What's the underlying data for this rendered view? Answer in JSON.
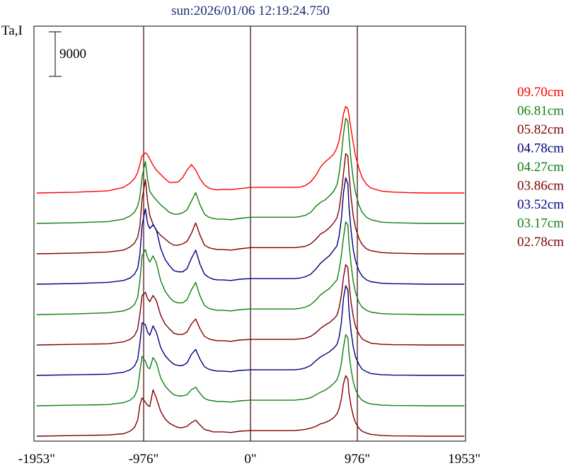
{
  "chart_data": {
    "type": "line",
    "title": "sun:2026/01/06 12:19:24.750",
    "ylabel": "Ta,I",
    "scale_bar_label": "9000",
    "x_ticks": [
      {
        "value": -1953,
        "label": "-1953\""
      },
      {
        "value": -976,
        "label": "-976\""
      },
      {
        "value": 0,
        "label": "0\""
      },
      {
        "value": 976,
        "label": "976\""
      },
      {
        "value": 1953,
        "label": "1953\""
      }
    ],
    "xlim": [
      -1953,
      1953
    ],
    "vertical_lines": [
      -976,
      0,
      976
    ],
    "grid": false,
    "legend_position": "right",
    "profile_x": [
      -1953,
      -1600,
      -1300,
      -1160,
      -1100,
      -1060,
      -1030,
      -1010,
      -990,
      -960,
      -940,
      -920,
      -890,
      -860,
      -820,
      -780,
      -740,
      -700,
      -660,
      -620,
      -580,
      -540,
      -500,
      -460,
      -420,
      -380,
      -340,
      -300,
      -250,
      -180,
      -100,
      0,
      100,
      200,
      300,
      400,
      450,
      500,
      550,
      600,
      640,
      680,
      720,
      760,
      790,
      810,
      830,
      850,
      870,
      890,
      900,
      920,
      940,
      960,
      990,
      1020,
      1060,
      1100,
      1200,
      1300,
      1450,
      1600,
      1953
    ],
    "series": [
      {
        "name": "09.70cm",
        "color": "#ff0000",
        "scale_bar_units": 0.72,
        "values": [
          0,
          0.012,
          0.035,
          0.09,
          0.16,
          0.23,
          0.33,
          0.47,
          0.6,
          0.65,
          0.62,
          0.55,
          0.45,
          0.37,
          0.3,
          0.23,
          0.17,
          0.17,
          0.18,
          0.25,
          0.37,
          0.46,
          0.37,
          0.23,
          0.13,
          0.08,
          0.06,
          0.05,
          0.06,
          0.055,
          0.07,
          0.09,
          0.09,
          0.09,
          0.09,
          0.09,
          0.095,
          0.12,
          0.18,
          0.29,
          0.42,
          0.5,
          0.56,
          0.63,
          0.73,
          0.85,
          1.05,
          1.28,
          1.4,
          1.36,
          1.26,
          1.02,
          0.8,
          0.6,
          0.4,
          0.25,
          0.14,
          0.08,
          0.03,
          0.015,
          0.005,
          0,
          0
        ]
      },
      {
        "name": "06.81cm",
        "color": "#108010",
        "scale_bar_units": 0.72,
        "values": [
          0,
          0.01,
          0.03,
          0.07,
          0.12,
          0.18,
          0.28,
          0.43,
          0.75,
          1.0,
          0.72,
          0.52,
          0.44,
          0.38,
          0.3,
          0.24,
          0.18,
          0.15,
          0.15,
          0.17,
          0.22,
          0.36,
          0.5,
          0.3,
          0.15,
          0.1,
          0.08,
          0.07,
          0.07,
          0.06,
          0.08,
          0.1,
          0.1,
          0.1,
          0.1,
          0.1,
          0.11,
          0.13,
          0.18,
          0.28,
          0.34,
          0.38,
          0.44,
          0.52,
          0.62,
          0.8,
          1.1,
          1.45,
          1.7,
          1.65,
          1.4,
          1.0,
          0.7,
          0.5,
          0.3,
          0.18,
          0.1,
          0.06,
          0.02,
          0.01,
          0.005,
          0,
          0
        ]
      },
      {
        "name": "05.82cm",
        "color": "#800000",
        "scale_bar_units": 0.72,
        "values": [
          0,
          0.01,
          0.03,
          0.06,
          0.11,
          0.17,
          0.27,
          0.45,
          0.88,
          1.2,
          0.85,
          0.62,
          0.48,
          0.38,
          0.3,
          0.24,
          0.18,
          0.14,
          0.14,
          0.16,
          0.2,
          0.33,
          0.5,
          0.3,
          0.14,
          0.1,
          0.08,
          0.07,
          0.07,
          0.06,
          0.08,
          0.1,
          0.1,
          0.1,
          0.1,
          0.1,
          0.11,
          0.12,
          0.16,
          0.24,
          0.32,
          0.36,
          0.42,
          0.5,
          0.58,
          0.72,
          0.98,
          1.3,
          1.62,
          1.58,
          1.3,
          0.9,
          0.6,
          0.42,
          0.25,
          0.15,
          0.08,
          0.05,
          0.02,
          0.01,
          0.005,
          0,
          0
        ]
      },
      {
        "name": "04.78cm",
        "color": "#000080",
        "scale_bar_units": 0.72,
        "values": [
          0,
          0.01,
          0.03,
          0.06,
          0.1,
          0.16,
          0.26,
          0.48,
          0.95,
          1.22,
          0.98,
          0.9,
          0.96,
          0.88,
          0.58,
          0.4,
          0.3,
          0.22,
          0.2,
          0.2,
          0.25,
          0.42,
          0.55,
          0.32,
          0.16,
          0.11,
          0.08,
          0.07,
          0.07,
          0.06,
          0.08,
          0.09,
          0.09,
          0.09,
          0.09,
          0.09,
          0.1,
          0.12,
          0.16,
          0.25,
          0.34,
          0.4,
          0.46,
          0.55,
          0.62,
          0.78,
          1.05,
          1.48,
          1.72,
          1.62,
          1.25,
          0.85,
          0.55,
          0.38,
          0.22,
          0.13,
          0.07,
          0.04,
          0.015,
          0.008,
          0.004,
          0,
          0
        ]
      },
      {
        "name": "04.27cm",
        "color": "#108010",
        "scale_bar_units": 0.72,
        "values": [
          0,
          0.01,
          0.03,
          0.06,
          0.1,
          0.16,
          0.28,
          0.55,
          0.95,
          1.05,
          0.92,
          0.85,
          0.95,
          0.84,
          0.55,
          0.38,
          0.28,
          0.21,
          0.19,
          0.19,
          0.24,
          0.4,
          0.52,
          0.3,
          0.15,
          0.1,
          0.08,
          0.07,
          0.07,
          0.06,
          0.08,
          0.09,
          0.09,
          0.09,
          0.09,
          0.09,
          0.1,
          0.12,
          0.16,
          0.24,
          0.32,
          0.37,
          0.42,
          0.5,
          0.56,
          0.72,
          0.95,
          1.25,
          1.5,
          1.45,
          1.15,
          0.8,
          0.52,
          0.36,
          0.2,
          0.12,
          0.07,
          0.04,
          0.015,
          0.008,
          0.004,
          0,
          0
        ]
      },
      {
        "name": "03.86cm",
        "color": "#800000",
        "scale_bar_units": 0.72,
        "values": [
          0,
          0.01,
          0.02,
          0.05,
          0.09,
          0.15,
          0.26,
          0.5,
          0.8,
          0.85,
          0.75,
          0.7,
          0.8,
          0.72,
          0.48,
          0.34,
          0.26,
          0.19,
          0.17,
          0.17,
          0.21,
          0.34,
          0.42,
          0.26,
          0.14,
          0.1,
          0.08,
          0.07,
          0.07,
          0.06,
          0.08,
          0.09,
          0.09,
          0.09,
          0.09,
          0.09,
          0.1,
          0.11,
          0.14,
          0.2,
          0.27,
          0.32,
          0.36,
          0.42,
          0.48,
          0.6,
          0.8,
          1.1,
          1.3,
          1.25,
          1.0,
          0.68,
          0.45,
          0.3,
          0.18,
          0.1,
          0.06,
          0.03,
          0.01,
          0.005,
          0.003,
          0,
          0
        ]
      },
      {
        "name": "03.52cm",
        "color": "#000080",
        "scale_bar_units": 0.72,
        "values": [
          0,
          0.01,
          0.02,
          0.05,
          0.09,
          0.15,
          0.26,
          0.52,
          0.85,
          0.82,
          0.7,
          0.65,
          0.8,
          0.7,
          0.45,
          0.32,
          0.24,
          0.18,
          0.16,
          0.16,
          0.2,
          0.34,
          0.42,
          0.26,
          0.14,
          0.1,
          0.08,
          0.07,
          0.07,
          0.06,
          0.08,
          0.09,
          0.09,
          0.09,
          0.09,
          0.09,
          0.1,
          0.12,
          0.16,
          0.24,
          0.3,
          0.34,
          0.38,
          0.44,
          0.5,
          0.62,
          0.85,
          1.25,
          1.45,
          1.38,
          1.05,
          0.7,
          0.45,
          0.3,
          0.18,
          0.1,
          0.06,
          0.03,
          0.01,
          0.005,
          0.003,
          0,
          0
        ]
      },
      {
        "name": "03.17cm",
        "color": "#108010",
        "scale_bar_units": 0.72,
        "values": [
          0,
          0.01,
          0.02,
          0.05,
          0.09,
          0.15,
          0.28,
          0.55,
          0.8,
          0.72,
          0.62,
          0.6,
          0.78,
          0.7,
          0.45,
          0.32,
          0.24,
          0.18,
          0.16,
          0.16,
          0.18,
          0.26,
          0.3,
          0.2,
          0.12,
          0.09,
          0.08,
          0.07,
          0.07,
          0.06,
          0.08,
          0.09,
          0.09,
          0.09,
          0.09,
          0.09,
          0.1,
          0.11,
          0.13,
          0.18,
          0.22,
          0.25,
          0.3,
          0.36,
          0.42,
          0.52,
          0.68,
          0.95,
          1.15,
          1.1,
          0.85,
          0.58,
          0.38,
          0.26,
          0.15,
          0.09,
          0.05,
          0.03,
          0.01,
          0.005,
          0.003,
          0,
          0
        ]
      },
      {
        "name": "02.78cm",
        "color": "#800000",
        "scale_bar_units": 0.72,
        "values": [
          0,
          0.01,
          0.02,
          0.04,
          0.08,
          0.14,
          0.26,
          0.5,
          0.62,
          0.55,
          0.5,
          0.48,
          0.75,
          0.62,
          0.4,
          0.28,
          0.21,
          0.17,
          0.14,
          0.14,
          0.16,
          0.22,
          0.26,
          0.18,
          0.11,
          0.09,
          0.07,
          0.07,
          0.07,
          0.06,
          0.08,
          0.09,
          0.09,
          0.09,
          0.09,
          0.09,
          0.1,
          0.11,
          0.13,
          0.16,
          0.2,
          0.22,
          0.25,
          0.3,
          0.36,
          0.45,
          0.6,
          0.85,
          0.98,
          0.92,
          0.7,
          0.48,
          0.32,
          0.22,
          0.13,
          0.08,
          0.05,
          0.03,
          0.01,
          0.005,
          0.003,
          0,
          0
        ]
      }
    ]
  }
}
